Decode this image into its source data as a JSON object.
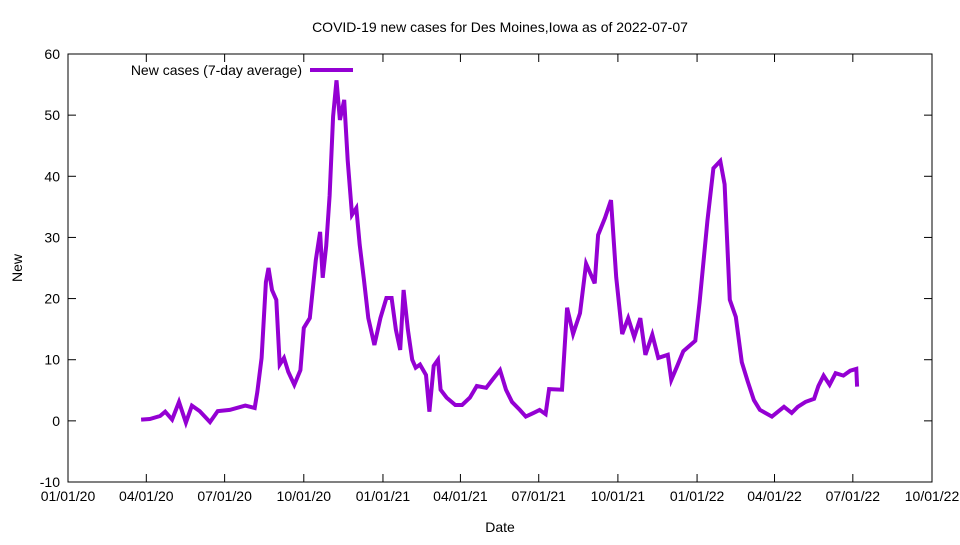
{
  "chart_data": {
    "type": "line",
    "title": "COVID-19 new cases for Des Moines,Iowa as of 2022-07-07",
    "xlabel": "Date",
    "ylabel": "New",
    "x_unit": "days since 2020-01-01",
    "xlim": [
      0,
      1004
    ],
    "ylim": [
      -10,
      60
    ],
    "yticks": [
      -10,
      0,
      10,
      20,
      30,
      40,
      50,
      60
    ],
    "xticks": [
      {
        "day": 0,
        "label": "01/01/20"
      },
      {
        "day": 91,
        "label": "04/01/20"
      },
      {
        "day": 182,
        "label": "07/01/20"
      },
      {
        "day": 274,
        "label": "10/01/20"
      },
      {
        "day": 366,
        "label": "01/01/21"
      },
      {
        "day": 456,
        "label": "04/01/21"
      },
      {
        "day": 547,
        "label": "07/01/21"
      },
      {
        "day": 639,
        "label": "10/01/21"
      },
      {
        "day": 731,
        "label": "01/01/22"
      },
      {
        "day": 821,
        "label": "04/01/22"
      },
      {
        "day": 912,
        "label": "07/01/22"
      },
      {
        "day": 1004,
        "label": "10/01/22"
      }
    ],
    "grid": false,
    "legend_position": "top-left",
    "series": [
      {
        "name": "New cases (7-day average)",
        "color": "#9400d3",
        "points": [
          [
            85,
            0.2
          ],
          [
            95,
            0.3
          ],
          [
            107,
            0.8
          ],
          [
            113,
            1.5
          ],
          [
            121,
            0.2
          ],
          [
            129,
            3.1
          ],
          [
            137,
            -0.3
          ],
          [
            144,
            2.5
          ],
          [
            153,
            1.6
          ],
          [
            165,
            -0.2
          ],
          [
            174,
            1.6
          ],
          [
            188,
            1.8
          ],
          [
            206,
            2.5
          ],
          [
            217,
            2.1
          ],
          [
            220,
            4.7
          ],
          [
            225,
            10.3
          ],
          [
            230,
            22.7
          ],
          [
            233,
            25
          ],
          [
            237,
            21.4
          ],
          [
            242,
            19.8
          ],
          [
            246,
            9.2
          ],
          [
            251,
            10.3
          ],
          [
            256,
            8
          ],
          [
            263,
            5.9
          ],
          [
            270,
            8.3
          ],
          [
            274,
            15.2
          ],
          [
            281,
            16.8
          ],
          [
            288,
            26.3
          ],
          [
            293,
            30.9
          ],
          [
            296,
            23.4
          ],
          [
            300,
            28.6
          ],
          [
            304,
            36.8
          ],
          [
            308,
            49.8
          ],
          [
            312,
            55.7
          ],
          [
            316,
            49.2
          ],
          [
            321,
            52.5
          ],
          [
            325,
            42.6
          ],
          [
            330,
            33.7
          ],
          [
            335,
            34.8
          ],
          [
            339,
            28.8
          ],
          [
            344,
            23
          ],
          [
            349,
            16.8
          ],
          [
            356,
            12.4
          ],
          [
            363,
            16.8
          ],
          [
            370,
            20.1
          ],
          [
            376,
            20.1
          ],
          [
            381,
            14.9
          ],
          [
            386,
            11.6
          ],
          [
            390,
            21.4
          ],
          [
            395,
            14.9
          ],
          [
            400,
            10
          ],
          [
            404,
            8.7
          ],
          [
            409,
            9.2
          ],
          [
            416,
            7.5
          ],
          [
            420,
            1.5
          ],
          [
            425,
            9
          ],
          [
            430,
            10
          ],
          [
            433,
            5.1
          ],
          [
            440,
            3.8
          ],
          [
            450,
            2.6
          ],
          [
            458,
            2.6
          ],
          [
            467,
            3.8
          ],
          [
            475,
            5.7
          ],
          [
            486,
            5.4
          ],
          [
            493,
            6.7
          ],
          [
            502,
            8.3
          ],
          [
            509,
            5.1
          ],
          [
            516,
            3.1
          ],
          [
            525,
            1.8
          ],
          [
            532,
            0.7
          ],
          [
            541,
            1.3
          ],
          [
            548,
            1.8
          ],
          [
            555,
            1.1
          ],
          [
            559,
            5.2
          ],
          [
            574,
            5.1
          ],
          [
            580,
            18.5
          ],
          [
            587,
            14.2
          ],
          [
            595,
            17.6
          ],
          [
            602,
            25.7
          ],
          [
            612,
            22.5
          ],
          [
            616,
            30.4
          ],
          [
            624,
            33.2
          ],
          [
            631,
            36.1
          ],
          [
            637,
            23.5
          ],
          [
            644,
            14.2
          ],
          [
            651,
            16.8
          ],
          [
            658,
            13.7
          ],
          [
            665,
            16.8
          ],
          [
            671,
            10.8
          ],
          [
            679,
            14.1
          ],
          [
            686,
            10.3
          ],
          [
            697,
            10.8
          ],
          [
            701,
            6.7
          ],
          [
            708,
            9
          ],
          [
            715,
            11.4
          ],
          [
            729,
            13.1
          ],
          [
            734,
            19.4
          ],
          [
            743,
            32.7
          ],
          [
            750,
            41.3
          ],
          [
            758,
            42.5
          ],
          [
            763,
            38.7
          ],
          [
            769,
            19.8
          ],
          [
            776,
            17
          ],
          [
            783,
            9.6
          ],
          [
            790,
            6.4
          ],
          [
            797,
            3.4
          ],
          [
            804,
            1.8
          ],
          [
            818,
            0.7
          ],
          [
            832,
            2.3
          ],
          [
            841,
            1.3
          ],
          [
            848,
            2.3
          ],
          [
            857,
            3.1
          ],
          [
            867,
            3.6
          ],
          [
            872,
            5.7
          ],
          [
            878,
            7.4
          ],
          [
            885,
            5.9
          ],
          [
            892,
            7.8
          ],
          [
            901,
            7.4
          ],
          [
            909,
            8.2
          ],
          [
            916,
            8.5
          ],
          [
            917,
            5.6
          ]
        ]
      }
    ]
  }
}
